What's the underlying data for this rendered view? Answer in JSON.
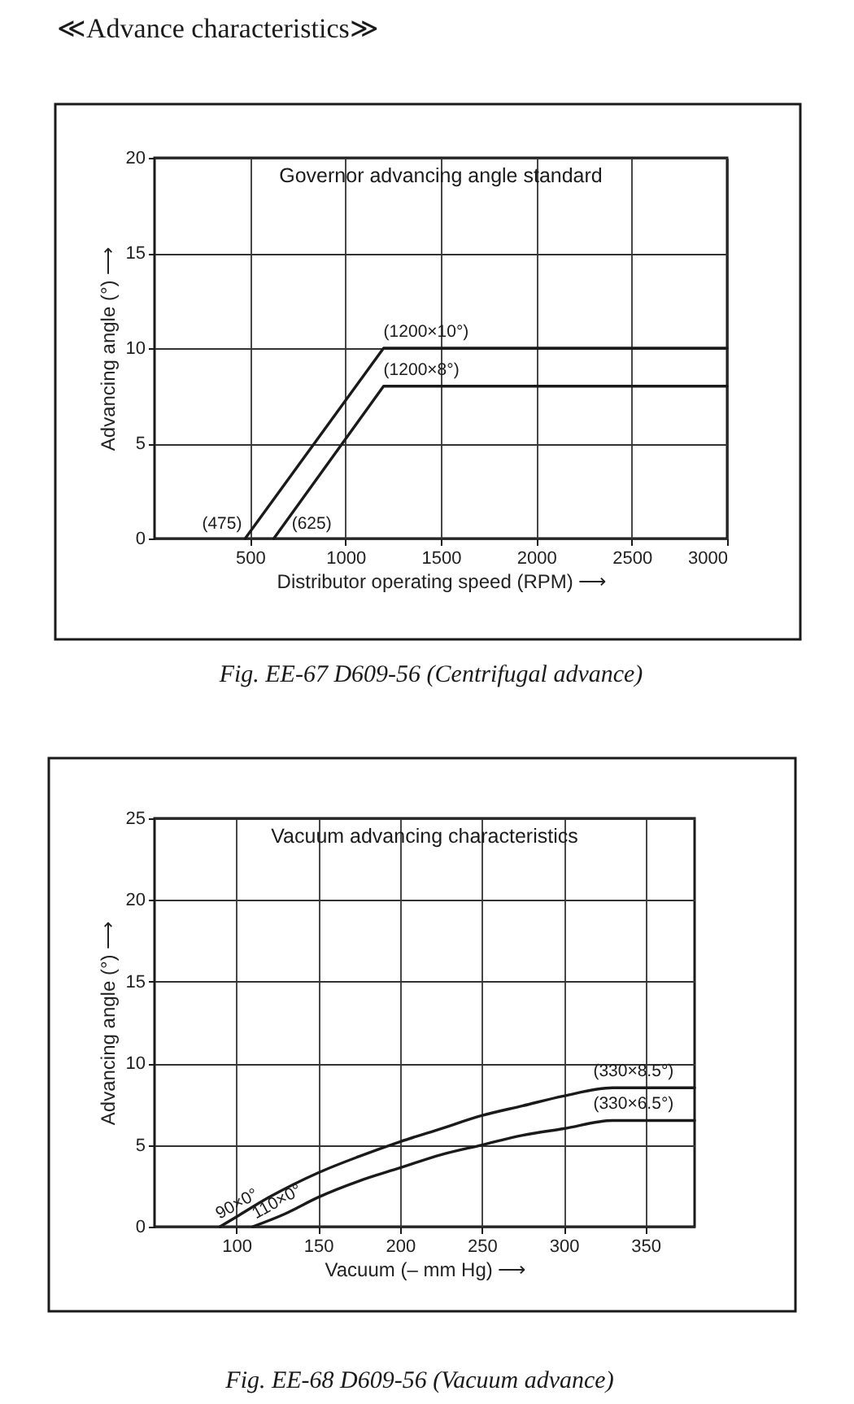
{
  "chart_data": [
    {
      "type": "other",
      "title": "≪Advance characteristics≫"
    },
    {
      "type": "line",
      "title": "Governor advancing angle standard",
      "xlabel": "Distributor operating speed (RPM) ⟶",
      "ylabel": "Advancing angle (°) ⟶",
      "series": [
        {
          "color": "#1a1a1a",
          "x": [
            475,
            1200,
            3000
          ],
          "values": [
            0,
            10,
            10
          ]
        },
        {
          "color": "#1a1a1a",
          "x": [
            625,
            1200,
            3000
          ],
          "values": [
            0,
            8,
            8
          ]
        }
      ],
      "xlim": [
        0,
        3000
      ],
      "xticks": [
        500,
        1000,
        1500,
        2000,
        2500,
        3000
      ],
      "ylim": [
        0,
        20
      ],
      "yticks": [
        0,
        5,
        10,
        15,
        20
      ],
      "grid": true,
      "line_style": "solid",
      "annotations": [
        {
          "text": "(475)",
          "x": 475,
          "y": 0
        },
        {
          "text": "(625)",
          "x": 625,
          "y": 0
        },
        {
          "text": "(1200×10°)",
          "x": 1200,
          "y": 10
        },
        {
          "text": "(1200×8°)",
          "x": 1200,
          "y": 8
        },
        "Fig. EE-67 D609-56 (Centrifugal advance)"
      ]
    },
    {
      "type": "line",
      "title": "Vacuum advancing characteristics",
      "xlabel": "Vacuum (– mm Hg) ⟶",
      "ylabel": "Advancing angle (°) ⟶",
      "series": [
        {
          "color": "#1a1a1a",
          "x": [
            90,
            100,
            120,
            150,
            175,
            200,
            225,
            250,
            275,
            300,
            330,
            380
          ],
          "values": [
            0,
            0.6,
            1.8,
            3.3,
            4.3,
            5.2,
            6.0,
            6.8,
            7.4,
            8.0,
            8.5,
            8.5
          ]
        },
        {
          "color": "#1a1a1a",
          "x": [
            110,
            130,
            150,
            175,
            200,
            225,
            250,
            275,
            300,
            330,
            380
          ],
          "values": [
            0,
            0.8,
            1.8,
            2.8,
            3.6,
            4.4,
            5.0,
            5.6,
            6.0,
            6.5,
            6.5
          ]
        }
      ],
      "xlim": [
        50,
        380
      ],
      "xticks": [
        100,
        150,
        200,
        250,
        300,
        350
      ],
      "ylim": [
        0,
        25
      ],
      "yticks": [
        0,
        5,
        10,
        15,
        20,
        25
      ],
      "grid": true,
      "line_style": "solid",
      "annotations": [
        {
          "text": "90×0°",
          "x": 90,
          "y": 0
        },
        {
          "text": "110×0°",
          "x": 110,
          "y": 0
        },
        {
          "text": "(330×8.5°)",
          "x": 330,
          "y": 8.5
        },
        {
          "text": "(330×6.5°)",
          "x": 330,
          "y": 6.5
        },
        "Fig. EE-68 D609-56 (Vacuum advance)"
      ]
    }
  ]
}
